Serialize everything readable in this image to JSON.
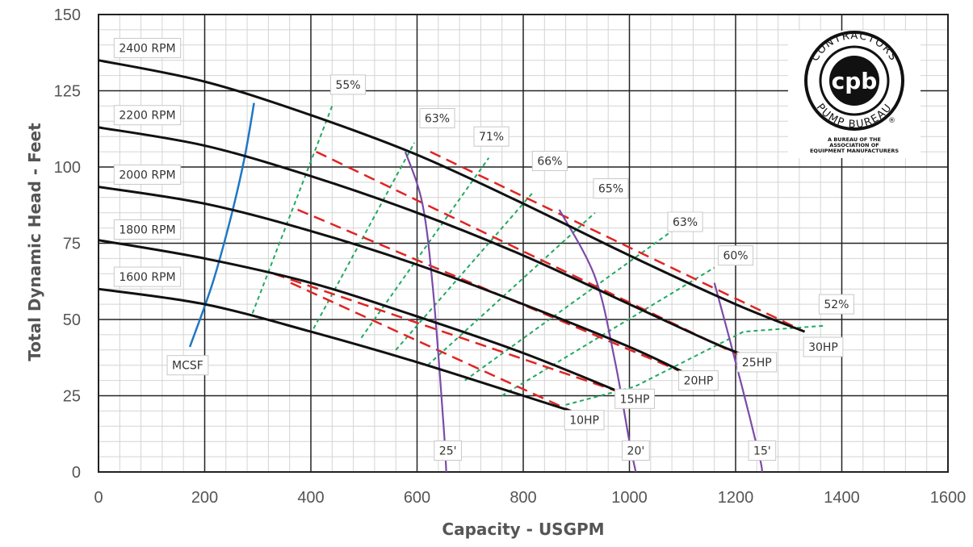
{
  "chart_data": {
    "type": "line",
    "xlabel": "Capacity - USGPM",
    "ylabel": "Total Dynamic Head - Feet",
    "xlim": [
      0,
      1600
    ],
    "ylim": [
      0,
      150
    ],
    "x_ticks": [
      0,
      200,
      400,
      600,
      800,
      1000,
      1200,
      1400,
      1600
    ],
    "y_ticks": [
      0,
      25,
      50,
      75,
      100,
      125,
      150
    ],
    "grid": true,
    "rpm_curves": [
      {
        "name": "2400 RPM",
        "color": "#111111",
        "points": [
          [
            0,
            135
          ],
          [
            200,
            128
          ],
          [
            400,
            117
          ],
          [
            600,
            104
          ],
          [
            800,
            88
          ],
          [
            1000,
            71
          ],
          [
            1200,
            55
          ],
          [
            1330,
            46
          ]
        ]
      },
      {
        "name": "2200 RPM",
        "color": "#111111",
        "points": [
          [
            0,
            113
          ],
          [
            200,
            107
          ],
          [
            400,
            97
          ],
          [
            600,
            85
          ],
          [
            800,
            71
          ],
          [
            1000,
            55
          ],
          [
            1150,
            43
          ],
          [
            1220,
            38
          ]
        ]
      },
      {
        "name": "2000 RPM",
        "color": "#111111",
        "points": [
          [
            0,
            93.5
          ],
          [
            200,
            88
          ],
          [
            400,
            79
          ],
          [
            600,
            68
          ],
          [
            800,
            55
          ],
          [
            1000,
            41
          ],
          [
            1110,
            32
          ]
        ]
      },
      {
        "name": "1800 RPM",
        "color": "#111111",
        "points": [
          [
            0,
            76
          ],
          [
            200,
            70
          ],
          [
            400,
            62
          ],
          [
            600,
            51
          ],
          [
            800,
            39
          ],
          [
            985,
            26
          ]
        ]
      },
      {
        "name": "1600 RPM",
        "color": "#111111",
        "points": [
          [
            0,
            60
          ],
          [
            200,
            55
          ],
          [
            400,
            46
          ],
          [
            600,
            36
          ],
          [
            800,
            25
          ],
          [
            890,
            20
          ]
        ]
      }
    ],
    "mcsf_curve": {
      "name": "MCSF",
      "color": "#1f77c4",
      "points": [
        [
          172,
          41
        ],
        [
          215,
          62
        ],
        [
          250,
          84
        ],
        [
          275,
          103
        ],
        [
          293,
          121
        ]
      ]
    },
    "npsh_curves": [
      {
        "name": "25'",
        "color": "#7b4aa8",
        "points": [
          [
            578,
            105
          ],
          [
            610,
            88
          ],
          [
            630,
            60
          ],
          [
            650,
            15
          ],
          [
            655,
            0
          ]
        ]
      },
      {
        "name": "20'",
        "color": "#7b4aa8",
        "points": [
          [
            868,
            86
          ],
          [
            935,
            64
          ],
          [
            972,
            37
          ],
          [
            1000,
            10
          ],
          [
            1012,
            0
          ]
        ]
      },
      {
        "name": "15'",
        "color": "#7b4aa8",
        "points": [
          [
            1160,
            62
          ],
          [
            1185,
            46
          ],
          [
            1212,
            28
          ],
          [
            1245,
            5
          ],
          [
            1250,
            0
          ]
        ]
      }
    ],
    "hp_lines": [
      {
        "name": "30HP",
        "color": "#e02424",
        "points": [
          [
            625,
            105
          ],
          [
            1330,
            46
          ]
        ]
      },
      {
        "name": "25HP",
        "color": "#e02424",
        "points": [
          [
            410,
            105
          ],
          [
            1210,
            38
          ]
        ]
      },
      {
        "name": "20HP",
        "color": "#e02424",
        "points": [
          [
            375,
            86
          ],
          [
            1110,
            32
          ]
        ]
      },
      {
        "name": "15HP",
        "color": "#e02424",
        "points": [
          [
            330,
            65
          ],
          [
            985,
            26
          ]
        ]
      },
      {
        "name": "10HP",
        "color": "#e02424",
        "points": [
          [
            362,
            62
          ],
          [
            890,
            20
          ]
        ]
      }
    ],
    "efficiency_lines": [
      {
        "name": "55%",
        "color": "#22a861",
        "points": [
          [
            290,
            52
          ],
          [
            440,
            120
          ]
        ]
      },
      {
        "name": "63%",
        "color": "#22a861",
        "points": [
          [
            405,
            47
          ],
          [
            595,
            108
          ]
        ]
      },
      {
        "name": "71%",
        "color": "#22a861",
        "points": [
          [
            495,
            44
          ],
          [
            735,
            103
          ]
        ]
      },
      {
        "name": "66%",
        "color": "#22a861",
        "points": [
          [
            560,
            40
          ],
          [
            820,
            92
          ]
        ]
      },
      {
        "name": "65%",
        "color": "#22a861",
        "points": [
          [
            620,
            35
          ],
          [
            935,
            85
          ]
        ]
      },
      {
        "name": "63%",
        "color": "#22a861",
        "points": [
          [
            690,
            30
          ],
          [
            1080,
            79
          ]
        ]
      },
      {
        "name": "60%",
        "color": "#22a861",
        "points": [
          [
            760,
            25
          ],
          [
            1160,
            67
          ]
        ]
      },
      {
        "name": "52%",
        "color": "#22a861",
        "points": [
          [
            880,
            22
          ],
          [
            1010,
            28
          ],
          [
            1215,
            46
          ],
          [
            1370,
            48
          ]
        ]
      }
    ],
    "annotations": [
      {
        "text": "2400 RPM",
        "x": 92,
        "y": 139
      },
      {
        "text": "2200 RPM",
        "x": 92,
        "y": 117
      },
      {
        "text": "2000 RPM",
        "x": 92,
        "y": 97.5
      },
      {
        "text": "1800 RPM",
        "x": 92,
        "y": 79.5
      },
      {
        "text": "1600 RPM",
        "x": 92,
        "y": 64
      },
      {
        "text": "MCSF",
        "x": 168,
        "y": 35
      },
      {
        "text": "55%",
        "x": 470,
        "y": 127
      },
      {
        "text": "63%",
        "x": 638,
        "y": 116
      },
      {
        "text": "71%",
        "x": 740,
        "y": 110
      },
      {
        "text": "66%",
        "x": 850,
        "y": 102
      },
      {
        "text": "65%",
        "x": 965,
        "y": 93
      },
      {
        "text": "63%",
        "x": 1105,
        "y": 82
      },
      {
        "text": "60%",
        "x": 1200,
        "y": 71
      },
      {
        "text": "52%",
        "x": 1390,
        "y": 55
      },
      {
        "text": "30HP",
        "x": 1365,
        "y": 41
      },
      {
        "text": "25HP",
        "x": 1240,
        "y": 36
      },
      {
        "text": "20HP",
        "x": 1130,
        "y": 30
      },
      {
        "text": "15HP",
        "x": 1010,
        "y": 24
      },
      {
        "text": "10HP",
        "x": 915,
        "y": 17
      },
      {
        "text": "25'",
        "x": 658,
        "y": 7
      },
      {
        "text": "20'",
        "x": 1012,
        "y": 7
      },
      {
        "text": "15'",
        "x": 1250,
        "y": 7
      }
    ]
  },
  "logo": {
    "ring_text_top": "CONTRACTORS",
    "ring_text_bottom": "PUMP BUREAU",
    "center": "cpb",
    "registered": "®",
    "subtitle_lines": [
      "A BUREAU OF THE",
      "ASSOCIATION OF",
      "EQUIPMENT MANUFACTURERS"
    ]
  }
}
